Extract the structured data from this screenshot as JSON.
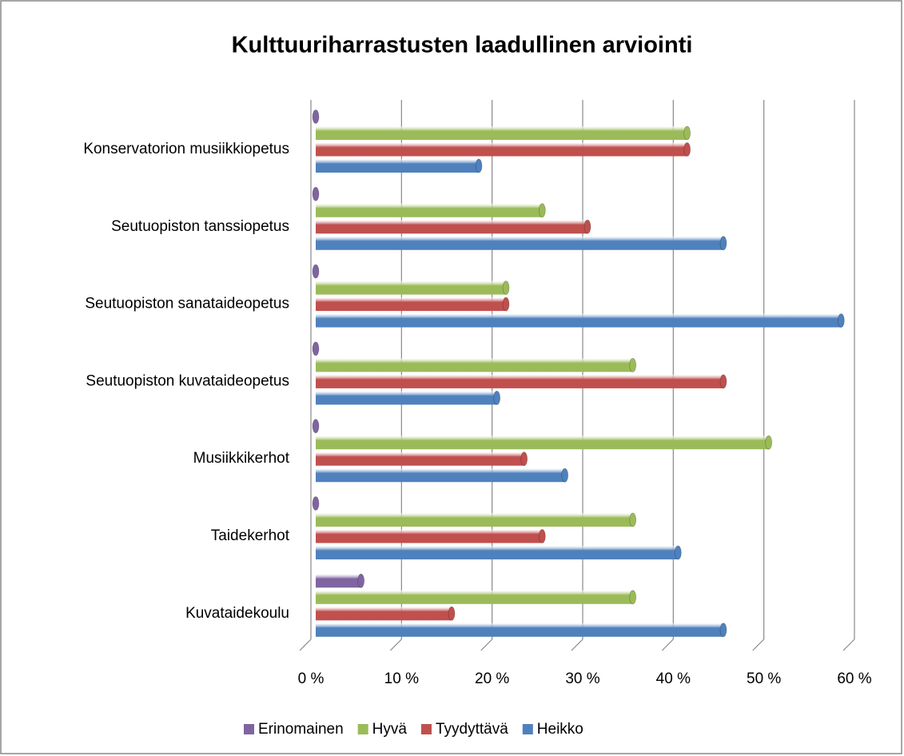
{
  "chart_data": {
    "type": "bar",
    "orientation": "horizontal",
    "title": "Kulttuuriharrastusten laadullinen arviointi",
    "categories": [
      "Konservatorion musiikkiopetus",
      "Seutuopiston tanssiopetus",
      "Seutuopiston sanataideopetus",
      "Seutuopiston kuvataideopetus",
      "Musiikkikerhot",
      "Taidekerhot",
      "Kuvataidekoulu"
    ],
    "series": [
      {
        "name": "Erinomainen",
        "color": "#8064a2",
        "values": [
          0,
          0,
          0,
          0,
          0,
          0,
          5
        ]
      },
      {
        "name": "Hyvä",
        "color": "#9bbb59",
        "values": [
          41,
          25,
          21,
          35,
          50,
          35,
          35
        ]
      },
      {
        "name": "Tyydyttävä",
        "color": "#c0504d",
        "values": [
          41,
          30,
          21,
          45,
          23,
          25,
          15
        ]
      },
      {
        "name": "Heikko",
        "color": "#4f81bd",
        "values": [
          18,
          45,
          58,
          20,
          27.5,
          40,
          45
        ]
      }
    ],
    "xlim": [
      0,
      60
    ],
    "xticks": [
      {
        "value": 0,
        "label": "0 %"
      },
      {
        "value": 10,
        "label": "10 %"
      },
      {
        "value": 20,
        "label": "20 %"
      },
      {
        "value": 30,
        "label": "30 %"
      },
      {
        "value": 40,
        "label": "40 %"
      },
      {
        "value": 50,
        "label": "50 %"
      },
      {
        "value": 60,
        "label": "60 %"
      }
    ],
    "grid": true,
    "legend": "bottom"
  }
}
